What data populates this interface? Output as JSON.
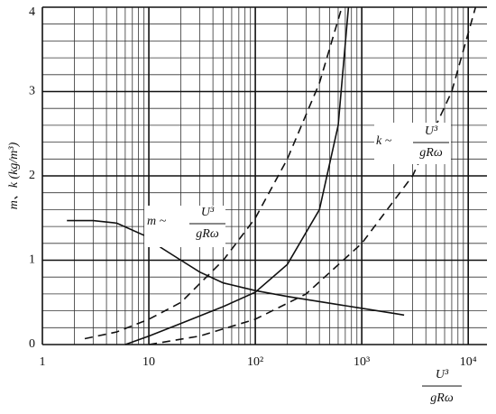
{
  "chart_data": {
    "type": "line",
    "y_label": "m、k (kg/m³)",
    "x_label": {
      "numerator": "U³",
      "denominator": "gRω"
    },
    "annotations": [
      {
        "symbol": "m ~",
        "numerator": "U³",
        "denominator": "gRω"
      },
      {
        "symbol": "k ~",
        "numerator": "U³",
        "denominator": "gRω"
      }
    ],
    "xscale": "log",
    "xlim": [
      1,
      15000
    ],
    "ylim": [
      0,
      4
    ],
    "xticks": [
      1,
      10,
      {
        "value": 100,
        "label": "10²"
      },
      {
        "value": 1000,
        "label": "10³"
      },
      {
        "value": 10000,
        "label": "10⁴"
      }
    ],
    "yticks": [
      0,
      1,
      2,
      3,
      4
    ],
    "x_minor_ticks": [
      2,
      3,
      4,
      5,
      6,
      7,
      8,
      9,
      20,
      30,
      40,
      50,
      60,
      70,
      80,
      90,
      200,
      300,
      400,
      500,
      600,
      700,
      800,
      900,
      2000,
      3000,
      4000,
      5000,
      6000,
      7000,
      8000,
      9000
    ],
    "y_minor_ticks": [
      0.2,
      0.4,
      0.6,
      0.8,
      1.2,
      1.4,
      1.6,
      1.8,
      2.2,
      2.4,
      2.6,
      2.8,
      3.2,
      3.4,
      3.6,
      3.8
    ],
    "grid": true,
    "series": [
      {
        "color": "#111",
        "dash": false,
        "x": [
          1.7,
          3,
          5,
          10,
          13,
          20,
          30,
          50,
          100,
          200,
          500,
          1000,
          2000,
          2500
        ],
        "values": [
          1.47,
          1.47,
          1.44,
          1.27,
          1.15,
          1.0,
          0.86,
          0.73,
          0.64,
          0.57,
          0.49,
          0.43,
          0.37,
          0.35
        ]
      },
      {
        "color": "#111",
        "dash": false,
        "x": [
          6,
          10,
          20,
          50,
          100,
          200,
          400,
          600,
          750
        ],
        "values": [
          0,
          0.1,
          0.25,
          0.45,
          0.62,
          0.95,
          1.6,
          2.6,
          4
        ]
      },
      {
        "color": "#111",
        "dash": true,
        "x": [
          2.5,
          5,
          10,
          20,
          50,
          100,
          200,
          400,
          650
        ],
        "values": [
          0.07,
          0.15,
          0.3,
          0.5,
          1.0,
          1.5,
          2.2,
          3.1,
          4
        ]
      },
      {
        "color": "#111",
        "dash": true,
        "x": [
          10,
          30,
          100,
          300,
          1000,
          3000,
          7000,
          11700
        ],
        "values": [
          0,
          0.1,
          0.3,
          0.6,
          1.2,
          2.0,
          3.0,
          4
        ]
      }
    ]
  }
}
